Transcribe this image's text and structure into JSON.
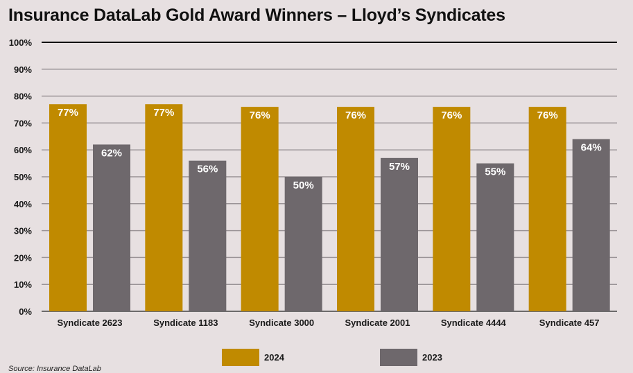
{
  "chart_data": {
    "type": "bar",
    "title": "Insurance DataLab Gold Award Winners – Lloyd’s Syndicates",
    "categories": [
      "Syndicate 2623",
      "Syndicate 1183",
      "Syndicate 3000",
      "Syndicate 2001",
      "Syndicate 4444",
      "Syndicate 457"
    ],
    "series": [
      {
        "name": "2024",
        "color": "#c08a00",
        "values": [
          77,
          77,
          76,
          76,
          76,
          76
        ]
      },
      {
        "name": "2023",
        "color": "#6e686c",
        "values": [
          62,
          56,
          50,
          57,
          55,
          64
        ]
      }
    ],
    "ylim": [
      0,
      100
    ],
    "yticks": [
      0,
      10,
      20,
      30,
      40,
      50,
      60,
      70,
      80,
      90,
      100
    ],
    "ytick_suffix": "%",
    "value_suffix": "%",
    "grid": true,
    "legend_position": "bottom-center",
    "source": "Source: Insurance DataLab"
  }
}
